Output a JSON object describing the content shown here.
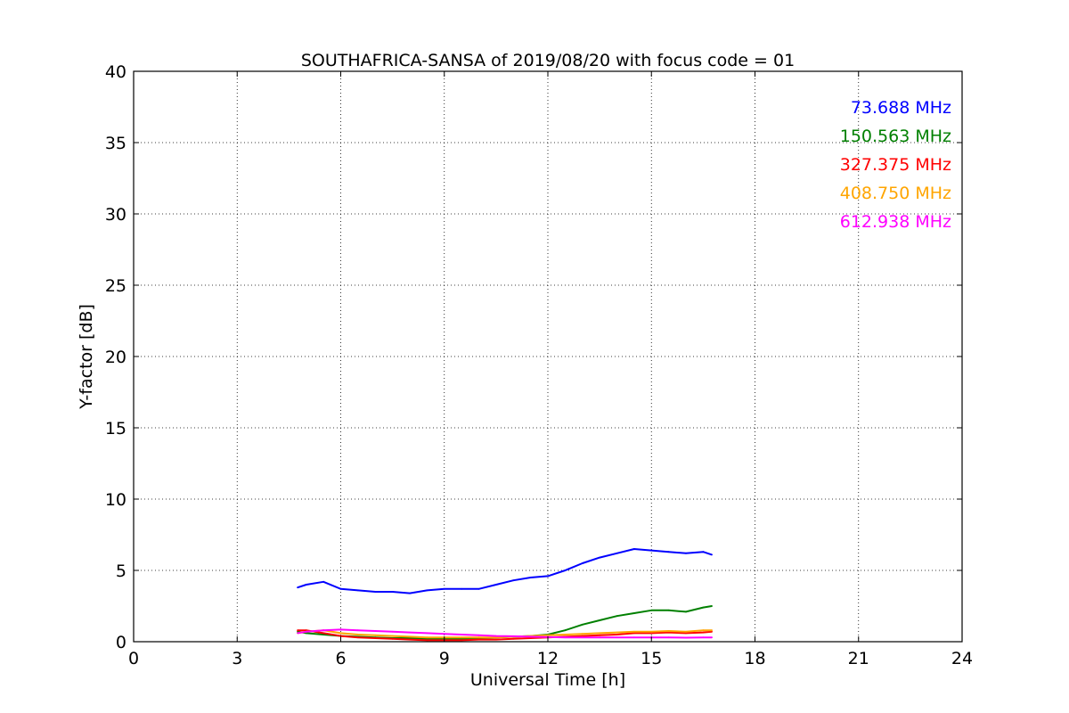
{
  "chart_data": {
    "type": "line",
    "title": "SOUTHAFRICA-SANSA of 2019/08/20 with focus code = 01",
    "xlabel": "Universal Time [h]",
    "ylabel": "Y-factor [dB]",
    "xlim": [
      0,
      24
    ],
    "ylim": [
      0,
      40
    ],
    "xticks": [
      0,
      3,
      6,
      9,
      12,
      15,
      18,
      21,
      24
    ],
    "yticks": [
      0,
      5,
      10,
      15,
      20,
      25,
      30,
      35,
      40
    ],
    "grid": true,
    "legend_position": "top-right",
    "series": [
      {
        "name": "73.688 MHz",
        "color": "#0000ff",
        "x": [
          4.75,
          5.0,
          5.5,
          6.0,
          6.5,
          7.0,
          7.5,
          8.0,
          8.5,
          9.0,
          9.5,
          10.0,
          10.5,
          11.0,
          11.5,
          12.0,
          12.5,
          13.0,
          13.5,
          14.0,
          14.5,
          15.0,
          15.5,
          16.0,
          16.5,
          16.75
        ],
        "y": [
          3.8,
          4.0,
          4.2,
          3.7,
          3.6,
          3.5,
          3.5,
          3.4,
          3.6,
          3.7,
          3.7,
          3.7,
          4.0,
          4.3,
          4.5,
          4.6,
          5.0,
          5.5,
          5.9,
          6.2,
          6.5,
          6.4,
          6.3,
          6.2,
          6.3,
          6.1
        ]
      },
      {
        "name": "150.563 MHz",
        "color": "#008000",
        "x": [
          4.75,
          5.0,
          5.5,
          6.0,
          6.5,
          7.0,
          7.5,
          8.0,
          8.5,
          9.0,
          9.5,
          10.0,
          10.5,
          11.0,
          11.5,
          12.0,
          12.5,
          13.0,
          13.5,
          14.0,
          14.5,
          15.0,
          15.5,
          16.0,
          16.5,
          16.75
        ],
        "y": [
          0.7,
          0.6,
          0.5,
          0.4,
          0.35,
          0.3,
          0.25,
          0.25,
          0.2,
          0.2,
          0.2,
          0.25,
          0.3,
          0.35,
          0.4,
          0.5,
          0.8,
          1.2,
          1.5,
          1.8,
          2.0,
          2.2,
          2.2,
          2.1,
          2.4,
          2.5
        ]
      },
      {
        "name": "327.375 MHz",
        "color": "#ff0000",
        "x": [
          4.75,
          5.0,
          5.5,
          6.0,
          6.5,
          7.0,
          7.5,
          8.0,
          8.5,
          9.0,
          9.5,
          10.0,
          10.5,
          11.0,
          11.5,
          12.0,
          12.5,
          13.0,
          13.5,
          14.0,
          14.5,
          15.0,
          15.5,
          16.0,
          16.5,
          16.75
        ],
        "y": [
          0.8,
          0.8,
          0.6,
          0.4,
          0.3,
          0.25,
          0.2,
          0.15,
          0.1,
          0.1,
          0.1,
          0.15,
          0.15,
          0.2,
          0.25,
          0.3,
          0.35,
          0.4,
          0.45,
          0.5,
          0.6,
          0.6,
          0.65,
          0.6,
          0.65,
          0.7
        ]
      },
      {
        "name": "408.750 MHz",
        "color": "#ffa500",
        "x": [
          4.75,
          5.0,
          5.5,
          6.0,
          6.5,
          7.0,
          7.5,
          8.0,
          8.5,
          9.0,
          9.5,
          10.0,
          10.5,
          11.0,
          11.5,
          12.0,
          12.5,
          13.0,
          13.5,
          14.0,
          14.5,
          15.0,
          15.5,
          16.0,
          16.5,
          16.75
        ],
        "y": [
          0.6,
          0.7,
          0.8,
          0.6,
          0.5,
          0.45,
          0.4,
          0.35,
          0.3,
          0.3,
          0.3,
          0.3,
          0.3,
          0.35,
          0.4,
          0.45,
          0.5,
          0.55,
          0.6,
          0.65,
          0.7,
          0.7,
          0.75,
          0.7,
          0.8,
          0.8
        ]
      },
      {
        "name": "612.938 MHz",
        "color": "#ff00ff",
        "x": [
          4.75,
          5.0,
          5.5,
          6.0,
          6.5,
          7.0,
          7.5,
          8.0,
          8.5,
          9.0,
          9.5,
          10.0,
          10.5,
          11.0,
          11.5,
          12.0,
          12.5,
          13.0,
          13.5,
          14.0,
          14.5,
          15.0,
          15.5,
          16.0,
          16.5,
          16.75
        ],
        "y": [
          0.6,
          0.7,
          0.8,
          0.85,
          0.8,
          0.75,
          0.7,
          0.65,
          0.6,
          0.55,
          0.5,
          0.45,
          0.4,
          0.38,
          0.35,
          0.33,
          0.3,
          0.3,
          0.3,
          0.3,
          0.3,
          0.3,
          0.3,
          0.28,
          0.3,
          0.3
        ]
      }
    ]
  }
}
